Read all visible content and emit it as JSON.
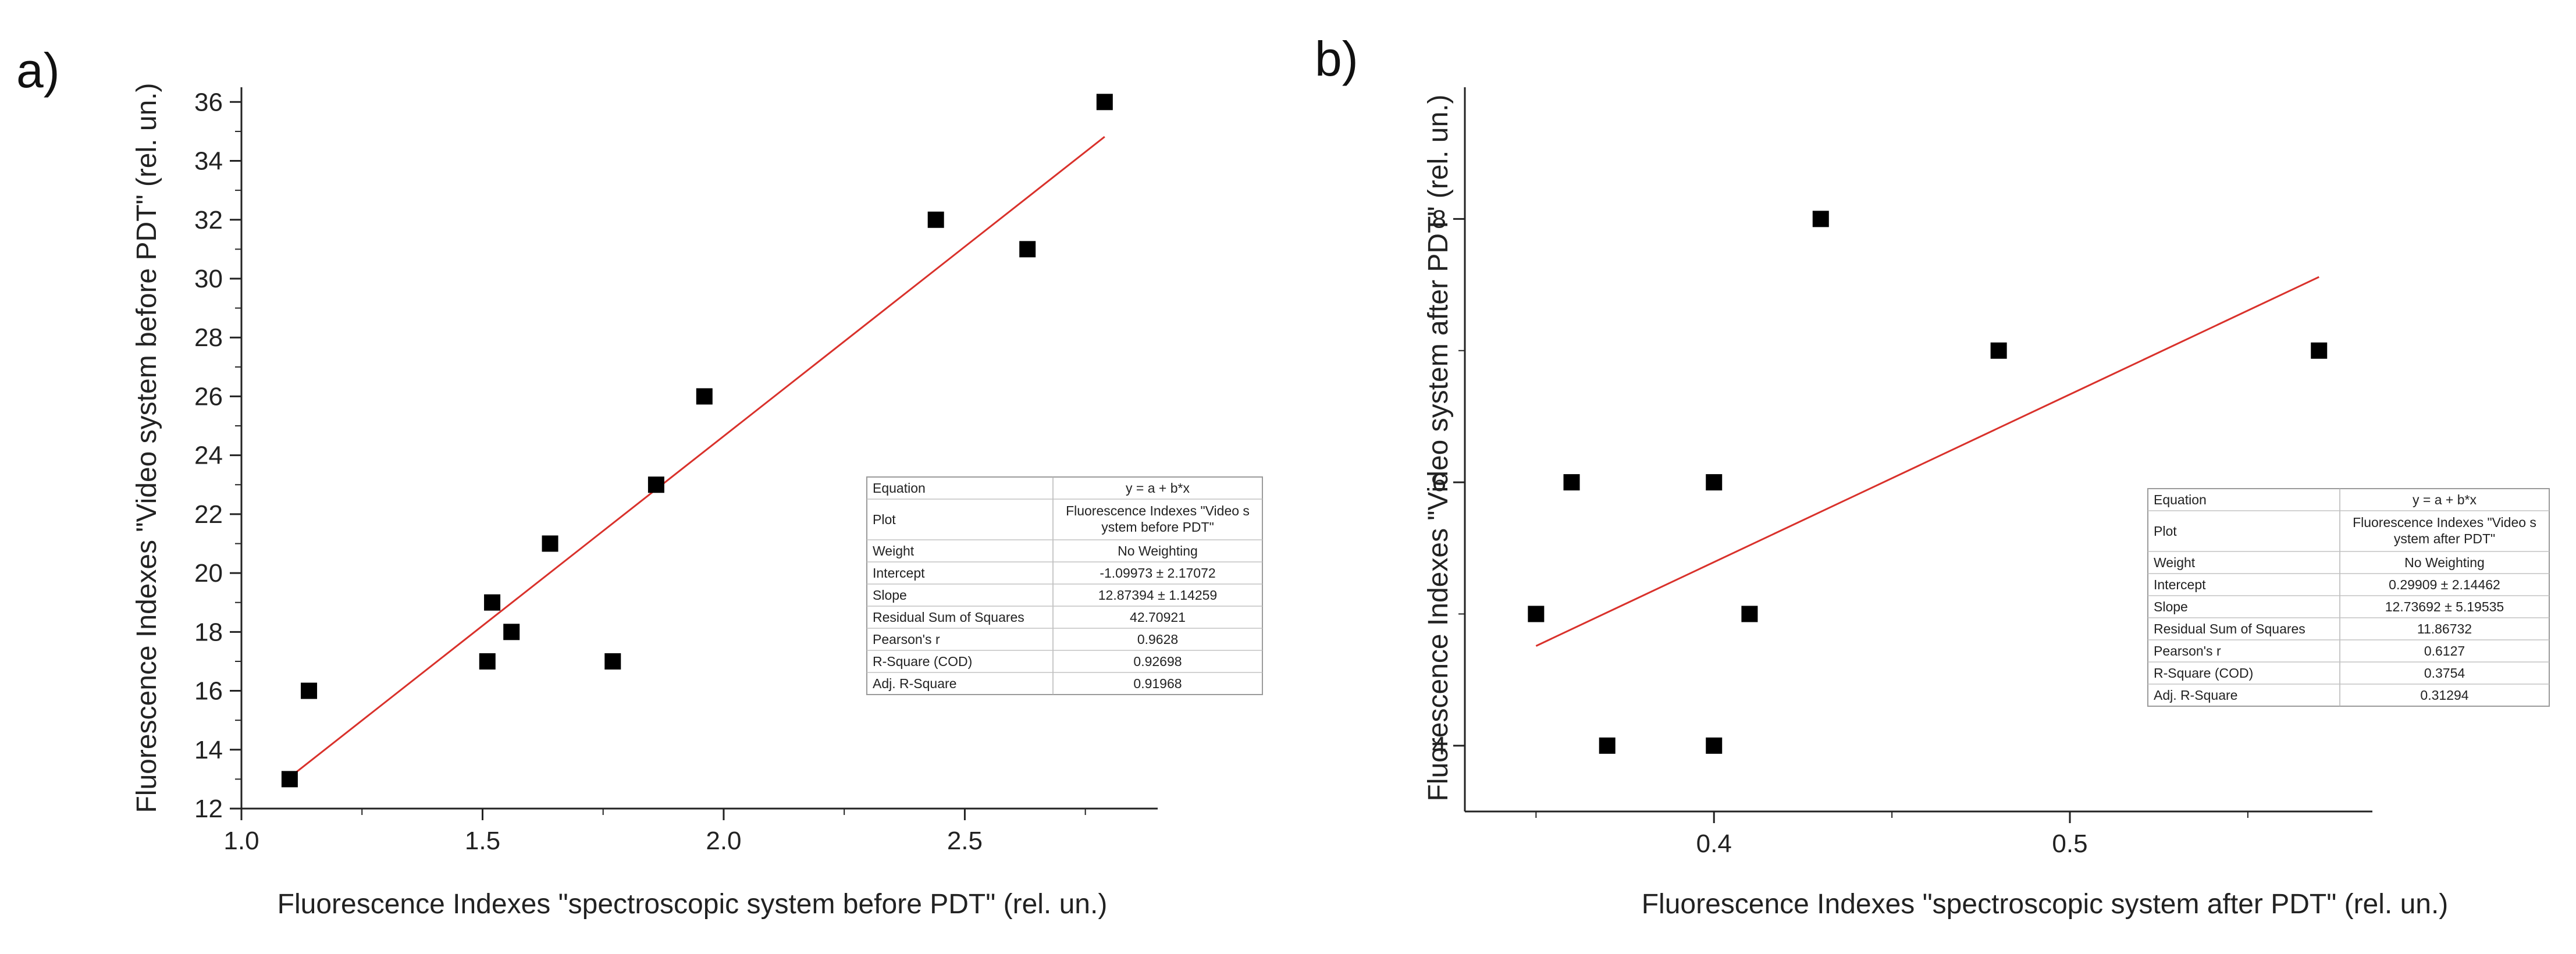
{
  "chart_data": [
    {
      "type": "scatter",
      "panel": "a)",
      "xlabel": "Fluorescence Indexes \"spectroscopic system before PDT\" (rel. un.)",
      "ylabel": "Fluorescence Indexes \"Video system before PDT\" (rel. un.)",
      "xlim": [
        1.0,
        2.9
      ],
      "ylim": [
        12,
        36.5
      ],
      "xticks": [
        1.0,
        1.5,
        2.0,
        2.5
      ],
      "xtick_labels": [
        "1.0",
        "1.5",
        "2.0",
        "2.5"
      ],
      "yticks": [
        12,
        14,
        16,
        18,
        20,
        22,
        24,
        26,
        28,
        30,
        32,
        34,
        36
      ],
      "ytick_labels": [
        "12",
        "14",
        "16",
        "18",
        "20",
        "22",
        "24",
        "26",
        "28",
        "30",
        "32",
        "34",
        "36"
      ],
      "points": [
        {
          "x": 1.1,
          "y": 13
        },
        {
          "x": 1.14,
          "y": 16
        },
        {
          "x": 1.51,
          "y": 17
        },
        {
          "x": 1.52,
          "y": 19
        },
        {
          "x": 1.56,
          "y": 18
        },
        {
          "x": 1.64,
          "y": 21
        },
        {
          "x": 1.77,
          "y": 17
        },
        {
          "x": 1.86,
          "y": 23
        },
        {
          "x": 1.96,
          "y": 26
        },
        {
          "x": 2.44,
          "y": 32
        },
        {
          "x": 2.63,
          "y": 31
        },
        {
          "x": 2.79,
          "y": 36
        }
      ],
      "fit": {
        "intercept": -1.09973,
        "slope": 12.87394,
        "x_range": [
          1.1,
          2.79
        ],
        "color": "#d9312b"
      },
      "marker_color": "#000000",
      "stats_table": [
        [
          "Equation",
          "y = a + b*x"
        ],
        [
          "Plot",
          "Fluorescence Indexes \"Video s|ystem before PDT\""
        ],
        [
          "Weight",
          "No Weighting"
        ],
        [
          "Intercept",
          "-1.09973 ± 2.17072"
        ],
        [
          "Slope",
          "12.87394 ± 1.14259"
        ],
        [
          "Residual Sum of Squares",
          "42.70921"
        ],
        [
          "Pearson's r",
          "0.9628"
        ],
        [
          "R-Square (COD)",
          "0.92698"
        ],
        [
          "Adj. R-Square",
          "0.91968"
        ]
      ]
    },
    {
      "type": "scatter",
      "panel": "b)",
      "xlabel": "Fluorescence Indexes \"spectroscopic system after PDT\" (rel. un.)",
      "ylabel": "Fluorescence Indexes \"Video system after PDT\" (rel. un.)",
      "xlim": [
        0.33,
        0.585
      ],
      "ylim": [
        3.5,
        9.0
      ],
      "xticks": [
        0.4,
        0.5
      ],
      "xtick_labels": [
        "0.4",
        "0.5"
      ],
      "yticks": [
        4,
        6,
        8
      ],
      "ytick_labels": [
        "4",
        "6",
        "8"
      ],
      "points": [
        {
          "x": 0.35,
          "y": 5
        },
        {
          "x": 0.36,
          "y": 6
        },
        {
          "x": 0.37,
          "y": 4
        },
        {
          "x": 0.4,
          "y": 6
        },
        {
          "x": 0.4,
          "y": 4
        },
        {
          "x": 0.41,
          "y": 5
        },
        {
          "x": 0.43,
          "y": 8
        },
        {
          "x": 0.48,
          "y": 7
        },
        {
          "x": 0.57,
          "y": 7
        }
      ],
      "fit": {
        "intercept": 0.29909,
        "slope": 12.73692,
        "x_range": [
          0.35,
          0.57
        ],
        "color": "#d9312b"
      },
      "marker_color": "#000000",
      "stats_table": [
        [
          "Equation",
          "y = a + b*x"
        ],
        [
          "Plot",
          "Fluorescence Indexes \"Video s|ystem after PDT\""
        ],
        [
          "Weight",
          "No Weighting"
        ],
        [
          "Intercept",
          "0.29909 ± 2.14462"
        ],
        [
          "Slope",
          "12.73692 ± 5.19535"
        ],
        [
          "Residual Sum of Squares",
          "11.86732"
        ],
        [
          "Pearson's r",
          "0.6127"
        ],
        [
          "R-Square (COD)",
          "0.3754"
        ],
        [
          "Adj. R-Square",
          "0.31294"
        ]
      ]
    }
  ]
}
